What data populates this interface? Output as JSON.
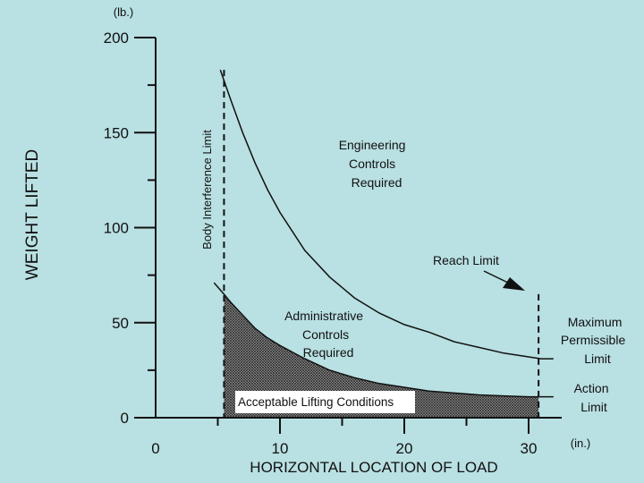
{
  "chart_data": {
    "type": "line",
    "xlabel": "HORIZONTAL LOCATION OF LOAD",
    "ylabel": "WEIGHT LIFTED",
    "x_unit": "(in.)",
    "y_unit": "(lb.)",
    "xlim": [
      0,
      32
    ],
    "ylim": [
      0,
      200
    ],
    "x_ticks": [
      0,
      10,
      20,
      30
    ],
    "y_ticks": [
      0,
      50,
      100,
      150,
      200
    ],
    "grid": false,
    "colors": {
      "background": "#b9e0e2",
      "ink": "#111111",
      "shade": "#555555"
    },
    "series": [
      {
        "name": "Maximum Permissible Limit",
        "x": [
          5.2,
          6,
          7,
          8,
          9,
          10,
          12,
          14,
          16,
          18,
          20,
          22,
          24,
          26,
          28,
          30,
          31,
          32
        ],
        "y": [
          183,
          168,
          150,
          134,
          120,
          108,
          88,
          74,
          63,
          55,
          49,
          45,
          40,
          37,
          34,
          32,
          31,
          31
        ]
      },
      {
        "name": "Action Limit",
        "x": [
          4.7,
          5.5,
          6,
          7,
          8,
          9,
          10,
          12,
          14,
          16,
          18,
          20,
          22,
          24,
          26,
          28,
          30,
          31,
          32
        ],
        "y": [
          71,
          65,
          61,
          54,
          47,
          42,
          38,
          31,
          25,
          21,
          18,
          16,
          14,
          13,
          12,
          11.5,
          11,
          11,
          11
        ]
      }
    ],
    "vlines": [
      {
        "label": "Body Interference Limit",
        "x": 5.5,
        "y_top": 183
      },
      {
        "label": "Reach Limit",
        "x": 30.8,
        "y_top": 65
      }
    ],
    "annotations": {
      "body_interference": "Body Interference Limit",
      "reach_limit": "Reach Limit",
      "engineering": [
        "Engineering",
        "Controls",
        "Required"
      ],
      "administrative": [
        "Administrative",
        "Controls",
        "Required"
      ],
      "acceptable": "Acceptable Lifting Conditions",
      "maximum": [
        "Maximum",
        "Permissible",
        "Limit"
      ],
      "action": [
        "Action",
        "Limit"
      ]
    }
  }
}
